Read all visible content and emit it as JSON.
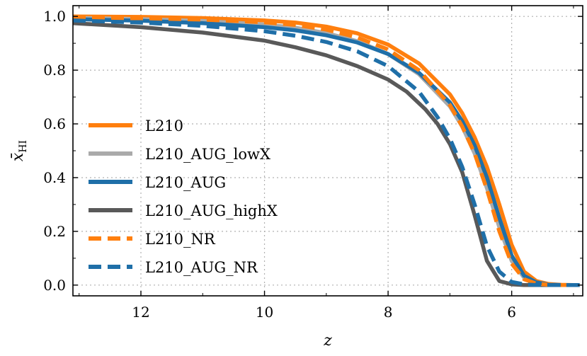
{
  "chart_data": {
    "type": "line",
    "xlabel": "z",
    "ylabel_main": "x̄",
    "ylabel_sub": "HI",
    "xlim": [
      13.1,
      4.85
    ],
    "ylim": [
      -0.04,
      1.04
    ],
    "x_ticks": [
      12,
      10,
      8,
      6
    ],
    "x_tick_labels": [
      "12",
      "10",
      "8",
      "6"
    ],
    "y_ticks": [
      0.0,
      0.2,
      0.4,
      0.6,
      0.8,
      1.0
    ],
    "y_tick_labels": [
      "0.0",
      "0.2",
      "0.4",
      "0.6",
      "0.8",
      "1.0"
    ],
    "grid": true,
    "legend_position": "left",
    "series": [
      {
        "name": "L210",
        "color": "#ff7f0e",
        "style": "solid",
        "x": [
          13.1,
          12,
          11,
          10,
          9.5,
          9,
          8.5,
          8,
          7.5,
          7,
          6.8,
          6.6,
          6.4,
          6.2,
          6.0,
          5.8,
          5.6,
          5.4,
          5.2,
          5.0,
          4.9
        ],
        "y": [
          1.0,
          0.998,
          0.994,
          0.985,
          0.977,
          0.962,
          0.937,
          0.895,
          0.825,
          0.71,
          0.64,
          0.55,
          0.44,
          0.3,
          0.15,
          0.05,
          0.015,
          0.004,
          0.001,
          0.0,
          0.0
        ]
      },
      {
        "name": "L210_AUG_lowX",
        "color": "#aaaaaa",
        "style": "solid",
        "x": [
          13.1,
          12,
          11,
          10,
          9.5,
          9,
          8.5,
          8,
          7.5,
          7,
          6.8,
          6.6,
          6.4,
          6.2,
          6.0,
          5.8,
          5.6,
          5.4,
          5.2,
          5.0,
          4.9
        ],
        "y": [
          0.995,
          0.99,
          0.983,
          0.97,
          0.958,
          0.938,
          0.908,
          0.86,
          0.785,
          0.665,
          0.59,
          0.49,
          0.36,
          0.215,
          0.09,
          0.028,
          0.007,
          0.002,
          0.0,
          0.0,
          0.0
        ]
      },
      {
        "name": "L210_AUG",
        "color": "#1f6fa8",
        "style": "solid",
        "x": [
          13.1,
          12,
          11,
          10,
          9.5,
          9,
          8.5,
          8,
          7.5,
          7,
          6.8,
          6.6,
          6.4,
          6.2,
          6.0,
          5.8,
          5.6,
          5.4,
          5.2,
          5.0,
          4.9
        ],
        "y": [
          0.99,
          0.984,
          0.975,
          0.96,
          0.948,
          0.93,
          0.903,
          0.86,
          0.79,
          0.68,
          0.61,
          0.52,
          0.4,
          0.25,
          0.11,
          0.035,
          0.01,
          0.002,
          0.0,
          0.0,
          0.0
        ]
      },
      {
        "name": "L210_AUG_highX",
        "color": "#595959",
        "style": "solid",
        "x": [
          13.1,
          12,
          11,
          10,
          9.5,
          9,
          8.5,
          8,
          7.7,
          7.4,
          7.2,
          7.0,
          6.8,
          6.6,
          6.4,
          6.2,
          6.0,
          5.8,
          5.6,
          5.2,
          4.9
        ],
        "y": [
          0.975,
          0.96,
          0.94,
          0.91,
          0.885,
          0.855,
          0.815,
          0.765,
          0.72,
          0.655,
          0.6,
          0.525,
          0.42,
          0.26,
          0.09,
          0.015,
          0.003,
          0.0,
          0.0,
          0.0,
          0.0
        ]
      },
      {
        "name": "L210_NR",
        "color": "#ff7f0e",
        "style": "dashed",
        "x": [
          13.1,
          12,
          11,
          10,
          9.5,
          9,
          8.5,
          8,
          7.5,
          7,
          6.8,
          6.6,
          6.4,
          6.2,
          6.0,
          5.8,
          5.6,
          5.4,
          5.2,
          5.0,
          4.9
        ],
        "y": [
          0.995,
          0.993,
          0.988,
          0.978,
          0.968,
          0.951,
          0.922,
          0.877,
          0.8,
          0.67,
          0.59,
          0.49,
          0.355,
          0.2,
          0.08,
          0.022,
          0.005,
          0.001,
          0.0,
          0.0,
          0.0
        ]
      },
      {
        "name": "L210_AUG_NR",
        "color": "#1f6fa8",
        "style": "dashed",
        "x": [
          13.1,
          12,
          11,
          10,
          9.5,
          9,
          8.5,
          8,
          7.5,
          7.2,
          7.0,
          6.8,
          6.6,
          6.4,
          6.2,
          6.0,
          5.8,
          5.6,
          5.2,
          5.0,
          4.9
        ],
        "y": [
          0.985,
          0.977,
          0.965,
          0.945,
          0.928,
          0.905,
          0.87,
          0.815,
          0.72,
          0.625,
          0.545,
          0.44,
          0.3,
          0.145,
          0.05,
          0.012,
          0.003,
          0.0,
          0.0,
          0.0,
          0.0
        ]
      }
    ]
  }
}
